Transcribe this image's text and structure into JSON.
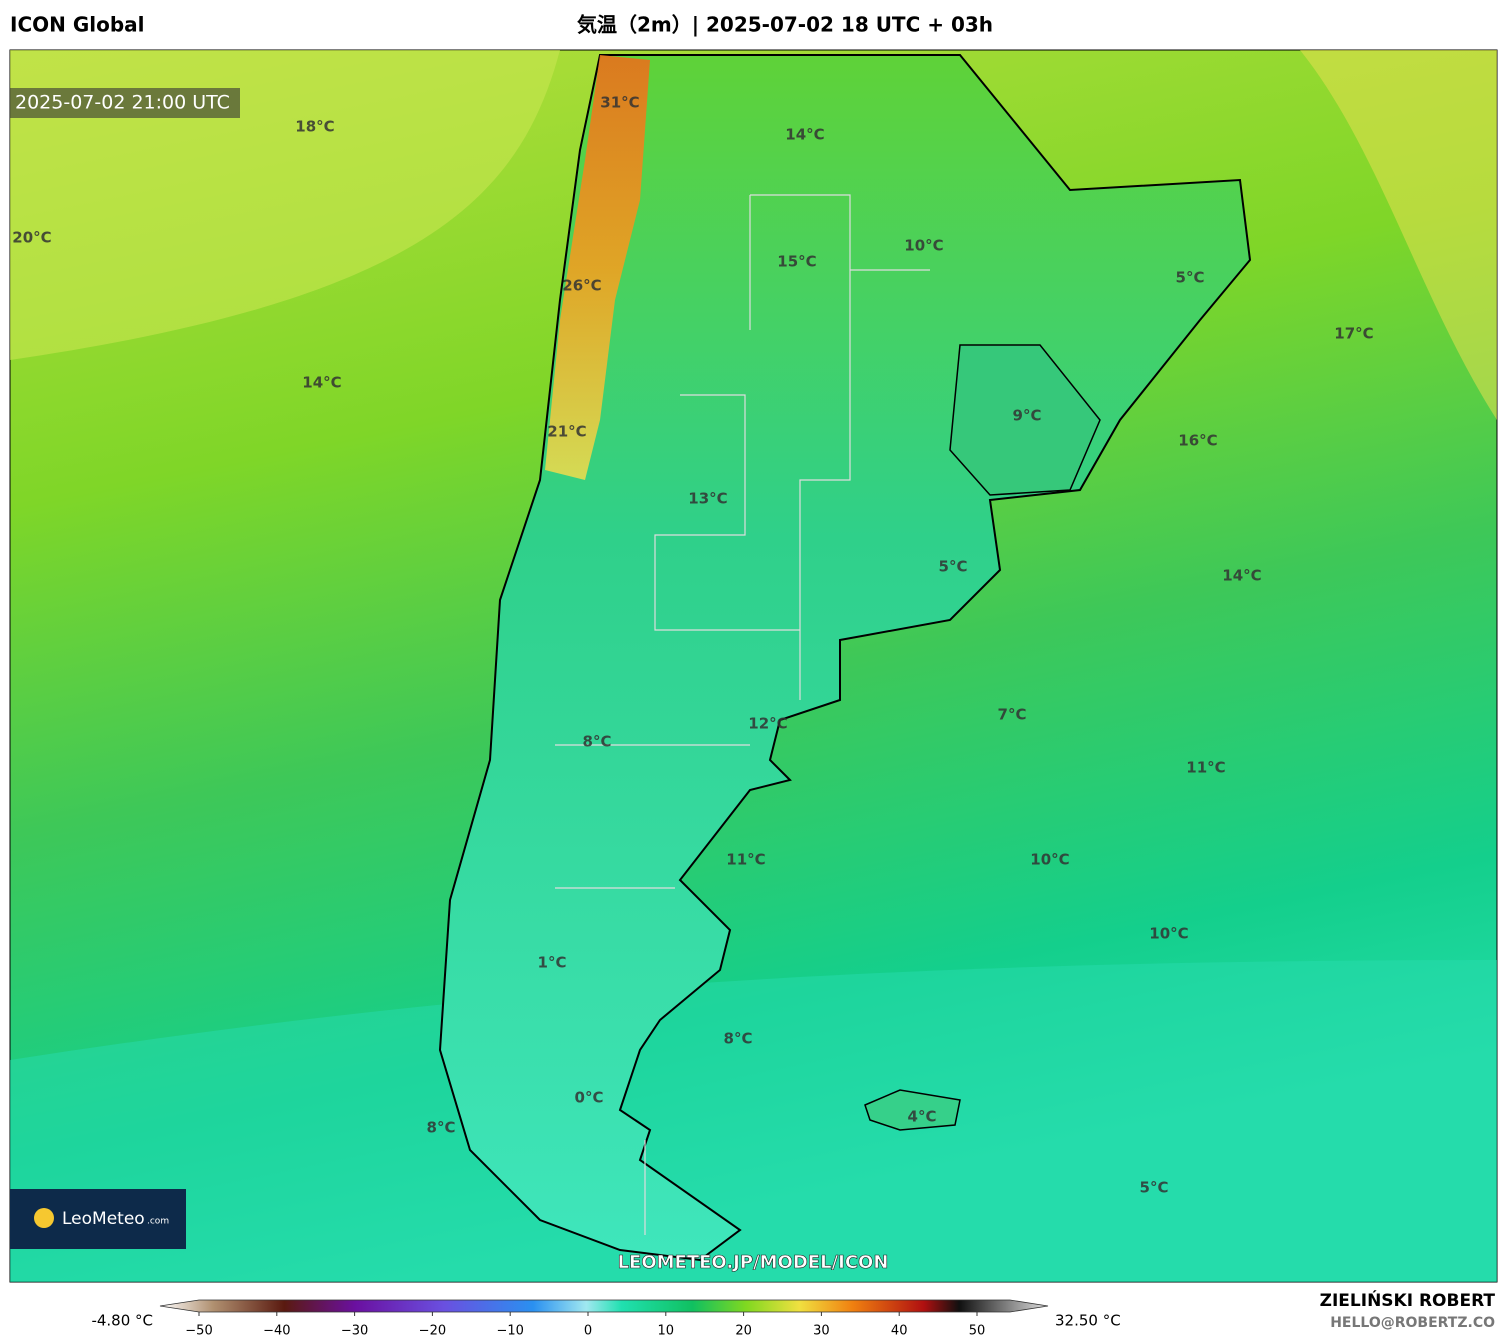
{
  "header": {
    "model": "ICON Global",
    "title": "気温（2m）| 2025-07-02 18 UTC + 03h"
  },
  "map": {
    "timestamp": "2025-07-02 21:00 UTC",
    "labels": [
      "31°C",
      "18°C",
      "14°C",
      "20°C",
      "10°C",
      "15°C",
      "5°C",
      "26°C",
      "17°C",
      "14°C",
      "9°C",
      "21°C",
      "16°C",
      "13°C",
      "5°C",
      "14°C",
      "7°C",
      "12°C",
      "8°C",
      "11°C",
      "11°C",
      "10°C",
      "10°C",
      "1°C",
      "8°C",
      "0°C",
      "4°C",
      "8°C",
      "5°C"
    ],
    "watermark": "LEOMETEO.JP/MODEL/ICON",
    "logo": {
      "name": "LeoMeteo",
      "suffix": ".com"
    }
  },
  "colorbar": {
    "min_label": "-4.80 °C",
    "max_label": "32.50 °C",
    "ticks": [
      {
        "value": -50,
        "label": "−50"
      },
      {
        "value": -40,
        "label": "−40"
      },
      {
        "value": -30,
        "label": "−30"
      },
      {
        "value": -20,
        "label": "−20"
      },
      {
        "value": -10,
        "label": "−10"
      },
      0,
      10,
      20,
      30,
      40,
      50
    ]
  },
  "credits": {
    "author": "ZIELIŃSKI ROBERT",
    "contact": "HELLO@ROBERTZ.CO"
  }
}
